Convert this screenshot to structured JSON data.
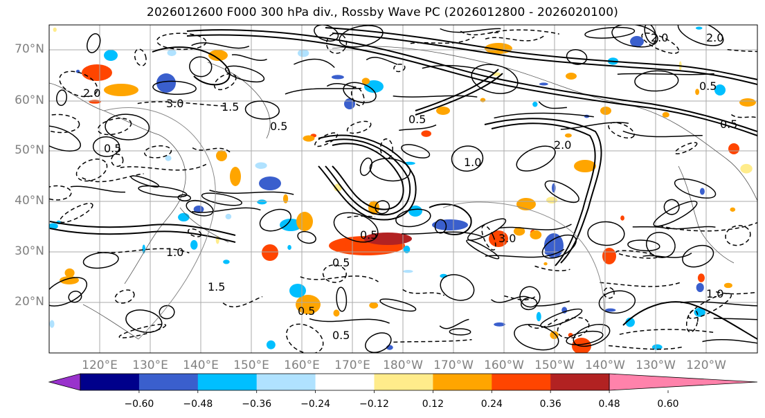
{
  "title": "2026012600 F000 300 hPa div., Rossby Wave PC (2026012800 - 2026020100)",
  "lat_axis": [
    "70°N",
    "60°N",
    "50°N",
    "40°N",
    "30°N",
    "20°N"
  ],
  "lon_axis": [
    "120°E",
    "130°E",
    "140°E",
    "150°E",
    "160°E",
    "170°E",
    "180°W",
    "170°W",
    "160°W",
    "150°W",
    "140°W",
    "130°W",
    "120°W"
  ],
  "colorbar": {
    "colors": [
      "#9932cc",
      "#00008b",
      "#3a5fcd",
      "#00bfff",
      "#b0e2ff",
      "#ffffff",
      "#ffec8b",
      "#ffa500",
      "#ff4500",
      "#b22222",
      "#ff82ab"
    ],
    "tick_labels": [
      "−0.60",
      "−0.48",
      "−0.36",
      "−0.24",
      "−0.12",
      "0.12",
      "0.24",
      "0.36",
      "0.48",
      "0.60"
    ]
  },
  "contour_labels": [
    "2.0",
    "0.5",
    "3.0",
    "1.5",
    "0.5",
    "1.0",
    "2.0",
    "0.5",
    "1.0",
    "0.5",
    "2.0",
    "0.5",
    "1.0",
    "0.5",
    "0.5",
    "3.0",
    "0.5",
    "1.5",
    "0.5",
    "2.0"
  ]
}
